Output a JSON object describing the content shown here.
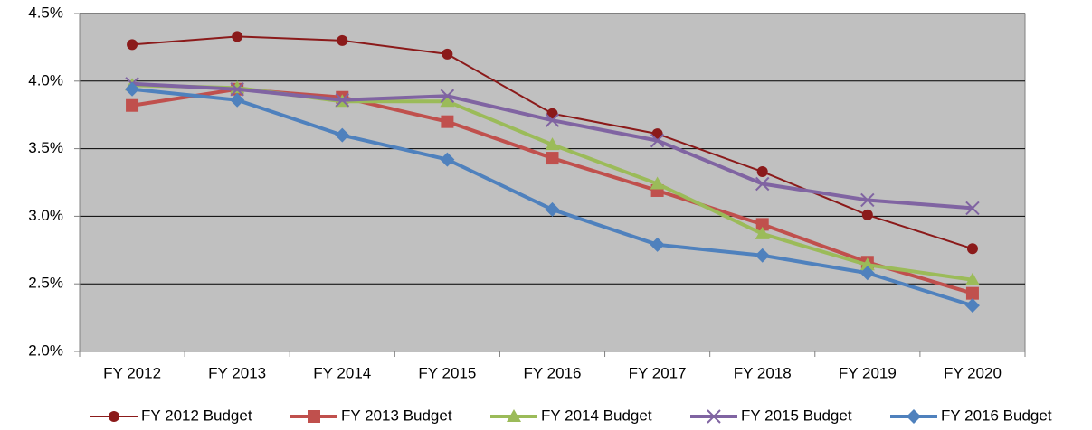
{
  "chart_data": {
    "type": "line",
    "categories": [
      "FY 2012",
      "FY 2013",
      "FY 2014",
      "FY 2015",
      "FY 2016",
      "FY 2017",
      "FY 2018",
      "FY 2019",
      "FY 2020"
    ],
    "series": [
      {
        "name": "FY 2012 Budget",
        "color": "#8b1a1a",
        "marker": "circle",
        "values": [
          4.27,
          4.33,
          4.3,
          4.2,
          3.76,
          3.61,
          3.33,
          3.01,
          2.76
        ]
      },
      {
        "name": "FY 2013 Budget",
        "color": "#c0504d",
        "marker": "square",
        "values": [
          3.82,
          3.94,
          3.88,
          3.7,
          3.43,
          3.19,
          2.94,
          2.66,
          2.43
        ]
      },
      {
        "name": "FY 2014 Budget",
        "color": "#9bbb59",
        "marker": "triangle",
        "values": [
          3.97,
          3.95,
          3.85,
          3.85,
          3.53,
          3.24,
          2.87,
          2.64,
          2.53
        ]
      },
      {
        "name": "FY 2015 Budget",
        "color": "#8064a2",
        "marker": "x",
        "values": [
          3.98,
          3.94,
          3.86,
          3.89,
          3.71,
          3.56,
          3.24,
          3.12,
          3.06
        ]
      },
      {
        "name": "FY 2016 Budget",
        "color": "#4f81bd",
        "marker": "diamond",
        "values": [
          3.94,
          3.86,
          3.6,
          3.42,
          3.05,
          2.79,
          2.71,
          2.58,
          2.34
        ]
      }
    ],
    "ylim": [
      2.0,
      4.5
    ],
    "yticks": [
      {
        "value": 2.0,
        "label": "2.0%"
      },
      {
        "value": 2.5,
        "label": "2.5%"
      },
      {
        "value": 3.0,
        "label": "3.0%"
      },
      {
        "value": 3.5,
        "label": "3.5%"
      },
      {
        "value": 4.0,
        "label": "4.0%"
      },
      {
        "value": 4.5,
        "label": "4.5%"
      }
    ],
    "grid": true,
    "legend": "bottom",
    "plot_background": "#c0c0c0"
  }
}
